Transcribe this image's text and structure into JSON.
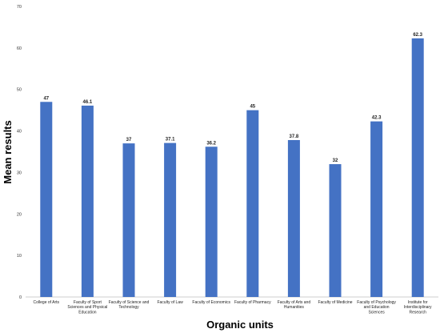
{
  "chart_data": {
    "type": "bar",
    "title": "",
    "xlabel": "Organic units",
    "ylabel": "Mean results",
    "ylim": [
      0,
      70
    ],
    "yticks": [
      0,
      10,
      20,
      30,
      40,
      50,
      60,
      70
    ],
    "grid": false,
    "legend": "none",
    "bar_color": "#4472C4",
    "categories": [
      [
        "College of Arts"
      ],
      [
        "Faculty of Sport",
        "Sciences and Physical",
        "Education"
      ],
      [
        "Faculty of Science and",
        "Technology"
      ],
      [
        "Faculty of Law"
      ],
      [
        "Faculty of Economics"
      ],
      [
        "Faculty of Pharmacy"
      ],
      [
        "Faculty of Arts and",
        "Humanities"
      ],
      [
        "Faculty of Medicine"
      ],
      [
        "Faculty of Psychology",
        "and Education",
        "Sciences"
      ],
      [
        "Institute for",
        "Interdisciplinary",
        "Research"
      ]
    ],
    "values": [
      47,
      46.1,
      37,
      37.1,
      36.2,
      45,
      37.8,
      32,
      42.3,
      62.3
    ],
    "data_labels": [
      "47",
      "46.1",
      "37",
      "37.1",
      "36.2",
      "45",
      "37.8",
      "32",
      "42.3",
      "62.3"
    ]
  }
}
